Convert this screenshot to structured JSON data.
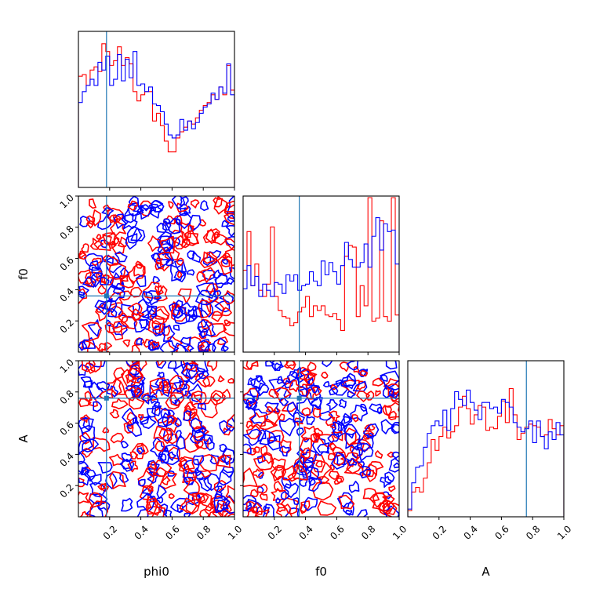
{
  "chart_data": {
    "type": "corner",
    "parameters": [
      "phi0",
      "f0",
      "A"
    ],
    "truth": {
      "phi0": 0.18,
      "f0": 0.36,
      "A": 0.76
    },
    "ylim": [
      0,
      1
    ],
    "series": [
      {
        "name": "",
        "color": "#ff0000"
      },
      {
        "name": "",
        "color": "#0000ff"
      }
    ],
    "truth_color": "#1f77b4",
    "tick_labels": {
      "x": [
        "0.2",
        "0.4",
        "0.6",
        "0.8",
        "1.0"
      ],
      "y": [
        "0.2",
        "0.4",
        "0.6",
        "0.8",
        "1.0"
      ]
    },
    "axis_labels": {
      "x": [
        "phi0",
        "f0",
        "A"
      ],
      "y": [
        "f0",
        "A"
      ]
    },
    "histograms": [
      {
        "param": "phi0",
        "bin_edges": [
          0.0,
          0.025,
          0.05,
          0.075,
          0.1,
          0.125,
          0.15,
          0.175,
          0.2,
          0.225,
          0.25,
          0.275,
          0.3,
          0.325,
          0.35,
          0.375,
          0.4,
          0.425,
          0.45,
          0.475,
          0.5,
          0.525,
          0.55,
          0.575,
          0.6,
          0.625,
          0.65,
          0.675,
          0.7,
          0.725,
          0.75,
          0.775,
          0.8,
          0.825,
          0.85,
          0.875,
          0.9,
          0.925,
          0.95,
          0.975,
          1.0
        ],
        "red": [
          0.72,
          0.73,
          0.66,
          0.76,
          0.78,
          0.75,
          0.93,
          0.88,
          0.79,
          0.82,
          0.91,
          0.79,
          0.84,
          0.8,
          0.62,
          0.56,
          0.6,
          0.62,
          0.62,
          0.43,
          0.48,
          0.4,
          0.3,
          0.23,
          0.23,
          0.32,
          0.36,
          0.39,
          0.43,
          0.41,
          0.45,
          0.5,
          0.53,
          0.55,
          0.6,
          0.57,
          0.65,
          0.6,
          0.79,
          0.63
        ],
        "blue": [
          0.55,
          0.62,
          0.66,
          0.7,
          0.66,
          0.81,
          0.76,
          0.85,
          0.66,
          0.7,
          0.86,
          0.69,
          0.83,
          0.71,
          0.88,
          0.66,
          0.67,
          0.62,
          0.65,
          0.54,
          0.53,
          0.49,
          0.41,
          0.34,
          0.32,
          0.34,
          0.44,
          0.37,
          0.43,
          0.38,
          0.42,
          0.48,
          0.52,
          0.54,
          0.61,
          0.57,
          0.65,
          0.61,
          0.8,
          0.6
        ]
      },
      {
        "param": "f0",
        "bin_edges": [
          0.0,
          0.025,
          0.05,
          0.075,
          0.1,
          0.125,
          0.15,
          0.175,
          0.2,
          0.225,
          0.25,
          0.275,
          0.3,
          0.325,
          0.35,
          0.375,
          0.4,
          0.425,
          0.45,
          0.475,
          0.5,
          0.525,
          0.55,
          0.575,
          0.6,
          0.625,
          0.65,
          0.675,
          0.7,
          0.725,
          0.75,
          0.775,
          0.8,
          0.825,
          0.85,
          0.875,
          0.9,
          0.925,
          0.95,
          0.975,
          1.0
        ],
        "red": [
          0.53,
          0.78,
          0.43,
          0.57,
          0.4,
          0.36,
          0.44,
          0.81,
          0.36,
          0.27,
          0.23,
          0.22,
          0.17,
          0.19,
          0.26,
          0.29,
          0.36,
          0.23,
          0.3,
          0.27,
          0.3,
          0.24,
          0.23,
          0.25,
          0.21,
          0.14,
          0.62,
          0.69,
          0.68,
          0.23,
          0.43,
          0.3,
          1.0,
          0.2,
          0.22,
          0.85,
          0.23,
          0.2,
          1.0,
          0.24
        ],
        "blue": [
          0.41,
          0.56,
          0.43,
          0.49,
          0.36,
          0.44,
          0.4,
          0.36,
          0.45,
          0.44,
          0.38,
          0.5,
          0.46,
          0.5,
          0.4,
          0.43,
          0.44,
          0.52,
          0.46,
          0.43,
          0.59,
          0.5,
          0.58,
          0.52,
          0.44,
          0.56,
          0.71,
          0.6,
          0.55,
          0.55,
          0.58,
          0.7,
          0.55,
          0.75,
          0.87,
          0.66,
          0.83,
          0.78,
          0.79,
          0.57
        ]
      },
      {
        "param": "A",
        "bin_edges": [
          0.0,
          0.025,
          0.05,
          0.075,
          0.1,
          0.125,
          0.15,
          0.175,
          0.2,
          0.225,
          0.25,
          0.275,
          0.3,
          0.325,
          0.35,
          0.375,
          0.4,
          0.425,
          0.45,
          0.475,
          0.5,
          0.525,
          0.55,
          0.575,
          0.6,
          0.625,
          0.65,
          0.675,
          0.7,
          0.725,
          0.75,
          0.775,
          0.8,
          0.825,
          0.85,
          0.875,
          0.9,
          0.925,
          0.95,
          0.975,
          1.0
        ],
        "red": [
          0.04,
          0.16,
          0.19,
          0.16,
          0.25,
          0.35,
          0.5,
          0.43,
          0.52,
          0.58,
          0.51,
          0.55,
          0.59,
          0.71,
          0.78,
          0.7,
          0.6,
          0.66,
          0.72,
          0.71,
          0.56,
          0.58,
          0.57,
          0.65,
          0.75,
          0.61,
          0.83,
          0.66,
          0.5,
          0.54,
          0.58,
          0.6,
          0.59,
          0.58,
          0.52,
          0.53,
          0.63,
          0.57,
          0.53,
          0.59
        ],
        "blue": [
          0.05,
          0.22,
          0.32,
          0.33,
          0.45,
          0.54,
          0.59,
          0.62,
          0.59,
          0.69,
          0.56,
          0.7,
          0.81,
          0.76,
          0.72,
          0.82,
          0.74,
          0.69,
          0.63,
          0.74,
          0.74,
          0.7,
          0.71,
          0.67,
          0.76,
          0.74,
          0.71,
          0.61,
          0.58,
          0.55,
          0.57,
          0.62,
          0.48,
          0.62,
          0.52,
          0.44,
          0.55,
          0.5,
          0.61,
          0.53
        ]
      }
    ],
    "contour_panels": [
      {
        "x": "phi0",
        "y": "f0",
        "seed": 11
      },
      {
        "x": "phi0",
        "y": "A",
        "seed": 23
      },
      {
        "x": "f0",
        "y": "A",
        "seed": 37
      }
    ]
  }
}
